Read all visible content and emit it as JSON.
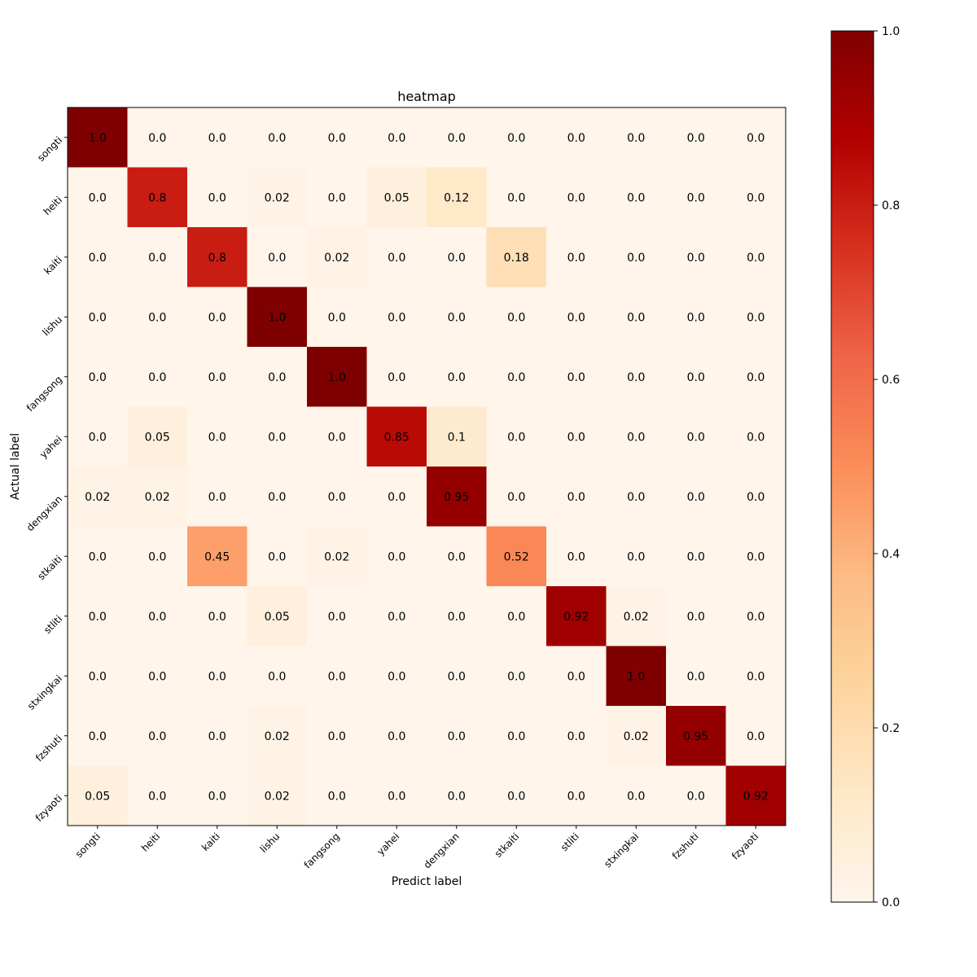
{
  "chart_data": {
    "type": "heatmap",
    "title": "heatmap",
    "xlabel": "Predict label",
    "ylabel": "Actual label",
    "x_categories": [
      "songti",
      "heiti",
      "kaiti",
      "lishu",
      "fangsong",
      "yahei",
      "dengxian",
      "stkaiti",
      "stliti",
      "stxingkai",
      "fzshuti",
      "fzyaoti"
    ],
    "y_categories": [
      "songti",
      "heiti",
      "kaiti",
      "lishu",
      "fangsong",
      "yahei",
      "dengxian",
      "stkaiti",
      "stliti",
      "stxingkai",
      "fzshuti",
      "fzyaoti"
    ],
    "values": [
      [
        1.0,
        0.0,
        0.0,
        0.0,
        0.0,
        0.0,
        0.0,
        0.0,
        0.0,
        0.0,
        0.0,
        0.0
      ],
      [
        0.0,
        0.8,
        0.0,
        0.02,
        0.0,
        0.05,
        0.12,
        0.0,
        0.0,
        0.0,
        0.0,
        0.0
      ],
      [
        0.0,
        0.0,
        0.8,
        0.0,
        0.02,
        0.0,
        0.0,
        0.18,
        0.0,
        0.0,
        0.0,
        0.0
      ],
      [
        0.0,
        0.0,
        0.0,
        1.0,
        0.0,
        0.0,
        0.0,
        0.0,
        0.0,
        0.0,
        0.0,
        0.0
      ],
      [
        0.0,
        0.0,
        0.0,
        0.0,
        1.0,
        0.0,
        0.0,
        0.0,
        0.0,
        0.0,
        0.0,
        0.0
      ],
      [
        0.0,
        0.05,
        0.0,
        0.0,
        0.0,
        0.85,
        0.1,
        0.0,
        0.0,
        0.0,
        0.0,
        0.0
      ],
      [
        0.02,
        0.02,
        0.0,
        0.0,
        0.0,
        0.0,
        0.95,
        0.0,
        0.0,
        0.0,
        0.0,
        0.0
      ],
      [
        0.0,
        0.0,
        0.45,
        0.0,
        0.02,
        0.0,
        0.0,
        0.52,
        0.0,
        0.0,
        0.0,
        0.0
      ],
      [
        0.0,
        0.0,
        0.0,
        0.05,
        0.0,
        0.0,
        0.0,
        0.0,
        0.92,
        0.02,
        0.0,
        0.0
      ],
      [
        0.0,
        0.0,
        0.0,
        0.0,
        0.0,
        0.0,
        0.0,
        0.0,
        0.0,
        1.0,
        0.0,
        0.0
      ],
      [
        0.0,
        0.0,
        0.0,
        0.02,
        0.0,
        0.0,
        0.0,
        0.0,
        0.0,
        0.02,
        0.95,
        0.0
      ],
      [
        0.05,
        0.0,
        0.0,
        0.02,
        0.0,
        0.0,
        0.0,
        0.0,
        0.0,
        0.0,
        0.0,
        0.92
      ]
    ],
    "cell_labels": [
      [
        "1.0",
        "0.0",
        "0.0",
        "0.0",
        "0.0",
        "0.0",
        "0.0",
        "0.0",
        "0.0",
        "0.0",
        "0.0",
        "0.0"
      ],
      [
        "0.0",
        "0.8",
        "0.0",
        "0.02",
        "0.0",
        "0.05",
        "0.12",
        "0.0",
        "0.0",
        "0.0",
        "0.0",
        "0.0"
      ],
      [
        "0.0",
        "0.0",
        "0.8",
        "0.0",
        "0.02",
        "0.0",
        "0.0",
        "0.18",
        "0.0",
        "0.0",
        "0.0",
        "0.0"
      ],
      [
        "0.0",
        "0.0",
        "0.0",
        "1.0",
        "0.0",
        "0.0",
        "0.0",
        "0.0",
        "0.0",
        "0.0",
        "0.0",
        "0.0"
      ],
      [
        "0.0",
        "0.0",
        "0.0",
        "0.0",
        "1.0",
        "0.0",
        "0.0",
        "0.0",
        "0.0",
        "0.0",
        "0.0",
        "0.0"
      ],
      [
        "0.0",
        "0.05",
        "0.0",
        "0.0",
        "0.0",
        "0.85",
        "0.1",
        "0.0",
        "0.0",
        "0.0",
        "0.0",
        "0.0"
      ],
      [
        "0.02",
        "0.02",
        "0.0",
        "0.0",
        "0.0",
        "0.0",
        "0.95",
        "0.0",
        "0.0",
        "0.0",
        "0.0",
        "0.0"
      ],
      [
        "0.0",
        "0.0",
        "0.45",
        "0.0",
        "0.02",
        "0.0",
        "0.0",
        "0.52",
        "0.0",
        "0.0",
        "0.0",
        "0.0"
      ],
      [
        "0.0",
        "0.0",
        "0.0",
        "0.05",
        "0.0",
        "0.0",
        "0.0",
        "0.0",
        "0.92",
        "0.02",
        "0.0",
        "0.0"
      ],
      [
        "0.0",
        "0.0",
        "0.0",
        "0.0",
        "0.0",
        "0.0",
        "0.0",
        "0.0",
        "0.0",
        "1.0",
        "0.0",
        "0.0"
      ],
      [
        "0.0",
        "0.0",
        "0.0",
        "0.02",
        "0.0",
        "0.0",
        "0.0",
        "0.0",
        "0.0",
        "0.02",
        "0.95",
        "0.0"
      ],
      [
        "0.05",
        "0.0",
        "0.0",
        "0.02",
        "0.0",
        "0.0",
        "0.0",
        "0.0",
        "0.0",
        "0.0",
        "0.0",
        "0.92"
      ]
    ],
    "colormap": "OrRd",
    "vmin": 0.0,
    "vmax": 1.0,
    "colorbar": {
      "range": [
        0.0,
        1.0
      ],
      "ticks": [
        0.0,
        0.2,
        0.4,
        0.6,
        0.8,
        1.0
      ],
      "tick_labels": [
        "0.0",
        "0.2",
        "0.4",
        "0.6",
        "0.8",
        "1.0"
      ]
    },
    "grid": false,
    "colorbar_placement": "right"
  }
}
